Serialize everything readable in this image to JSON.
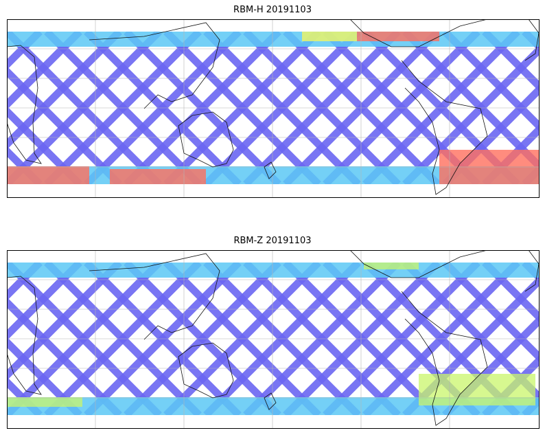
{
  "panels": [
    {
      "title": "RBM-H 20191103",
      "palette": {
        "low": "#6a66f2",
        "mid": "#5cc8f5",
        "high": "#ff6f5e"
      },
      "hot_regions": [
        "southern-ocean-band",
        "north-pacific-top",
        "south-atlantic"
      ]
    },
    {
      "title": "RBM-Z 20191103",
      "palette": {
        "low": "#6a66f2",
        "mid": "#5cc8f5",
        "high": "#c9f56b"
      },
      "hot_regions": [
        "southern-ocean-band-mild",
        "south-america-east"
      ]
    }
  ],
  "map": {
    "projection": "plate-carree",
    "gridlines": true,
    "coastlines": true
  }
}
